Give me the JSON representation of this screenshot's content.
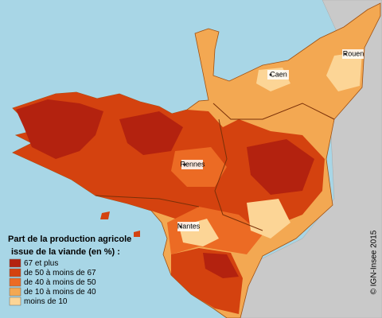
{
  "legend": {
    "title": [
      "Part de la production agricole",
      "issue de la viande (en %) :"
    ],
    "items": [
      {
        "label": "67 et plus",
        "color": "#b3220f"
      },
      {
        "label": "de 50 à moins de 67",
        "color": "#d4420f"
      },
      {
        "label": "de 40 à moins de 50",
        "color": "#ec6b24"
      },
      {
        "label": "de 10 à moins de 40",
        "color": "#f3a852"
      },
      {
        "label": "moins de 10",
        "color": "#fcd596"
      }
    ]
  },
  "cities": [
    {
      "name": "Caen"
    },
    {
      "name": "Rouen"
    },
    {
      "name": "Rennes"
    },
    {
      "name": "Nantes"
    }
  ],
  "credit": "© IGN-Insee 2015"
}
